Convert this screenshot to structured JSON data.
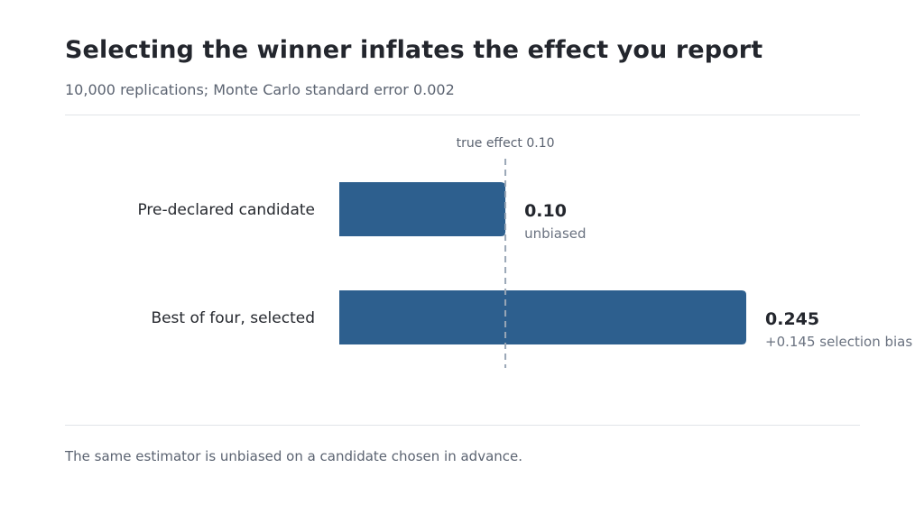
{
  "header": {
    "title": "Selecting the winner inflates the effect you report",
    "subtitle": "10,000 replications; Monte Carlo standard error 0.002"
  },
  "footer": {
    "note": "The same estimator is unbiased on a candidate chosen in advance."
  },
  "colors": {
    "bar": "#2d5f8e",
    "reference_line": "#9aa7b6"
  },
  "chart_data": {
    "type": "bar",
    "orientation": "horizontal",
    "title": "Selecting the winner inflates the effect you report",
    "subtitle": "10,000 replications; Monte Carlo standard error 0.002",
    "categories": [
      "Pre-declared candidate",
      "Best of four, selected"
    ],
    "values": [
      0.1,
      0.245
    ],
    "value_labels": [
      "0.10",
      "0.245"
    ],
    "annotations": [
      "unbiased",
      "+0.145 selection bias"
    ],
    "reference_line": {
      "value": 0.1,
      "label": "true effect 0.10"
    },
    "xlim": [
      0,
      0.245
    ],
    "grid": false,
    "legend": "none"
  }
}
